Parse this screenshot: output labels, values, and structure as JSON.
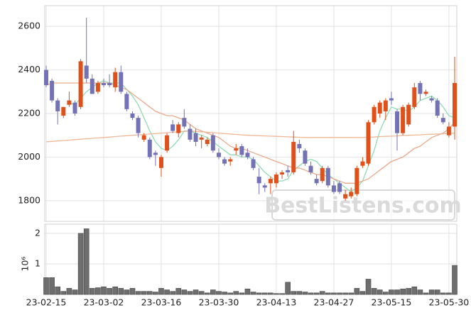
{
  "chart_data": {
    "type": "candlestick",
    "watermark": "BestListens.com",
    "categories": [
      "23-02-15",
      null,
      null,
      null,
      null,
      null,
      null,
      null,
      null,
      null,
      "23-03-02",
      null,
      null,
      null,
      null,
      null,
      null,
      null,
      null,
      null,
      "23-03-16",
      null,
      null,
      null,
      null,
      null,
      null,
      null,
      null,
      null,
      "23-03-30",
      null,
      null,
      null,
      null,
      null,
      null,
      null,
      null,
      null,
      "23-04-13",
      null,
      null,
      null,
      null,
      null,
      null,
      null,
      null,
      null,
      "23-04-27",
      null,
      null,
      null,
      null,
      null,
      null,
      null,
      null,
      null,
      "23-05-15",
      null,
      null,
      null,
      null,
      null,
      null,
      null,
      null,
      null,
      "23-05-30",
      null
    ],
    "open": [
      2400,
      2350,
      2260,
      2190,
      2240,
      2250,
      2230,
      2420,
      2360,
      2300,
      2340,
      2340,
      2320,
      2390,
      2290,
      2200,
      2180,
      2080,
      2080,
      2020,
      1950,
      2030,
      2150,
      2110,
      2180,
      2130,
      2110,
      2080,
      2060,
      2100,
      2020,
      1990,
      1980,
      2030,
      2050,
      2020,
      1990,
      1910,
      1870,
      1880,
      1880,
      1920,
      1940,
      1930,
      2060,
      2030,
      1960,
      1900,
      1890,
      1950,
      1870,
      1880,
      1810,
      1820,
      1830,
      1960,
      1970,
      2160,
      2200,
      2210,
      2270,
      2210,
      2110,
      2150,
      2230,
      2340,
      2290,
      2270,
      2260,
      2180,
      2100,
      2140
    ],
    "high": [
      2420,
      2360,
      2270,
      2230,
      2300,
      2260,
      2450,
      2640,
      2380,
      2350,
      2360,
      2380,
      2410,
      2420,
      2300,
      2210,
      2190,
      2110,
      2090,
      2030,
      2010,
      2110,
      2170,
      2160,
      2220,
      2150,
      2130,
      2100,
      2090,
      2110,
      2040,
      2000,
      2000,
      2060,
      2060,
      2040,
      2000,
      1950,
      1880,
      1910,
      1930,
      1940,
      1960,
      2120,
      2080,
      2040,
      1980,
      1920,
      1960,
      1960,
      1890,
      1890,
      1850,
      1860,
      1960,
      2000,
      2170,
      2240,
      2260,
      2270,
      2300,
      2220,
      2240,
      2250,
      2340,
      2350,
      2310,
      2280,
      2270,
      2200,
      2160,
      2460
    ],
    "low": [
      2320,
      2250,
      2150,
      2180,
      2230,
      2190,
      2220,
      2340,
      2290,
      2290,
      2320,
      2320,
      2300,
      2290,
      2210,
      2170,
      2090,
      2070,
      1990,
      1960,
      1910,
      2020,
      2110,
      2090,
      2130,
      2070,
      2050,
      2040,
      2050,
      2020,
      1990,
      1960,
      1960,
      2010,
      2000,
      1990,
      1940,
      1830,
      1840,
      1830,
      1860,
      1900,
      1910,
      1920,
      2020,
      1960,
      1920,
      1870,
      1880,
      1860,
      1830,
      1830,
      1800,
      1810,
      1820,
      1950,
      1960,
      2150,
      2180,
      2170,
      2240,
      2030,
      2100,
      2140,
      2220,
      2260,
      2280,
      2250,
      2180,
      2150,
      2090,
      2080
    ],
    "close": [
      2330,
      2260,
      2210,
      2230,
      2260,
      2200,
      2440,
      2360,
      2290,
      2340,
      2330,
      2330,
      2390,
      2300,
      2220,
      2180,
      2110,
      2100,
      2000,
      2010,
      2000,
      2100,
      2120,
      2150,
      2140,
      2080,
      2070,
      2090,
      2080,
      2030,
      2000,
      1970,
      1990,
      2040,
      2010,
      2000,
      1950,
      1880,
      1860,
      1900,
      1920,
      1930,
      1930,
      2070,
      2040,
      1970,
      1930,
      1880,
      1950,
      1870,
      1840,
      1840,
      1830,
      1840,
      1950,
      1980,
      2160,
      2230,
      2250,
      2260,
      2260,
      2110,
      2230,
      2240,
      2320,
      2290,
      2300,
      2260,
      2190,
      2160,
      2140,
      2340
    ],
    "volume": [
      0.55,
      0.55,
      0.25,
      0.1,
      0.2,
      0.15,
      2.0,
      2.15,
      0.2,
      0.22,
      0.25,
      0.2,
      0.25,
      0.2,
      0.15,
      0.2,
      0.1,
      0.1,
      0.1,
      0.08,
      0.2,
      0.15,
      0.1,
      0.2,
      0.15,
      0.1,
      0.15,
      0.1,
      0.05,
      0.15,
      0.1,
      0.08,
      0.05,
      0.1,
      0.05,
      0.18,
      0.08,
      0.05,
      0.05,
      0.05,
      0.03,
      0.03,
      0.4,
      0.1,
      0.1,
      0.08,
      0.05,
      0.05,
      0.1,
      0.05,
      0.05,
      0.05,
      0.05,
      0.05,
      0.2,
      0.1,
      0.5,
      0.2,
      0.15,
      0.08,
      0.15,
      0.15,
      0.18,
      0.2,
      0.25,
      0.15,
      0.05,
      0.15,
      0.15,
      0.05,
      0.05,
      0.95
    ],
    "up_color": "#e0501a",
    "down_color": "#7472b6",
    "volume_color": "#6e6e6e",
    "moving_averages": [
      {
        "color": "#8fdcb4",
        "values": [
          null,
          null,
          null,
          null,
          2250,
          2240,
          2270,
          2300,
          2320,
          2340,
          2350,
          2340,
          2340,
          2340,
          2310,
          2280,
          2240,
          2180,
          2120,
          2070,
          2040,
          2030,
          2050,
          2080,
          2120,
          2120,
          2110,
          2100,
          2090,
          2070,
          2050,
          2030,
          2010,
          2010,
          2000,
          2000,
          1990,
          1960,
          1930,
          1910,
          1890,
          1890,
          1900,
          1940,
          1960,
          1980,
          1990,
          1980,
          1950,
          1920,
          1900,
          1880,
          1860,
          1840,
          1860,
          1890,
          1960,
          2030,
          2120,
          2180,
          2230,
          2220,
          2220,
          2210,
          2230,
          2260,
          2270,
          2280,
          2260,
          2230,
          2190,
          2180
        ]
      },
      {
        "color": "#eba88a",
        "values": [
          2330,
          2340,
          2340,
          2340,
          2340,
          2340,
          2340,
          2340,
          2340,
          2340,
          2340,
          2340,
          2330,
          2320,
          2310,
          2290,
          2270,
          2250,
          2230,
          2210,
          2200,
          2190,
          2190,
          2180,
          2170,
          2150,
          2130,
          2120,
          2110,
          2100,
          2090,
          2070,
          2050,
          2040,
          2040,
          2030,
          2020,
          2010,
          2000,
          1990,
          1980,
          1970,
          1960,
          1950,
          1950,
          1940,
          1930,
          1920,
          1920,
          1910,
          1900,
          1890,
          1880,
          1880,
          1880,
          1890,
          1900,
          1920,
          1940,
          1960,
          1980,
          1990,
          2000,
          2020,
          2040,
          2050,
          2070,
          2090,
          2100,
          2110,
          2130,
          2160
        ]
      },
      {
        "color": "#efb696",
        "values": [
          2070,
          2072,
          2074,
          2076,
          2078,
          2080,
          2082,
          2084,
          2086,
          2088,
          2090,
          2092,
          2094,
          2096,
          2098,
          2100,
          2102,
          2104,
          2106,
          2108,
          2110,
          2112,
          2114,
          2116,
          2118,
          2120,
          2118,
          2116,
          2114,
          2112,
          2110,
          2108,
          2106,
          2104,
          2102,
          2100,
          2099,
          2098,
          2097,
          2096,
          2095,
          2094,
          2093,
          2092,
          2091,
          2090,
          2090,
          2090,
          2090,
          2090,
          2090,
          2090,
          2090,
          2090,
          2090,
          2090,
          2091,
          2092,
          2094,
          2095,
          2096,
          2097,
          2099,
          2100,
          2101,
          2102,
          2104,
          2105,
          2106,
          2107,
          2109,
          2110
        ]
      }
    ],
    "ylim": [
      1705,
      2695
    ],
    "yticks": [
      1800,
      2000,
      2200,
      2400,
      2600
    ],
    "volume_ylim": [
      0,
      2.3
    ],
    "volume_yticks": [
      1,
      2
    ],
    "volume_label": "10⁶",
    "grid": true
  }
}
